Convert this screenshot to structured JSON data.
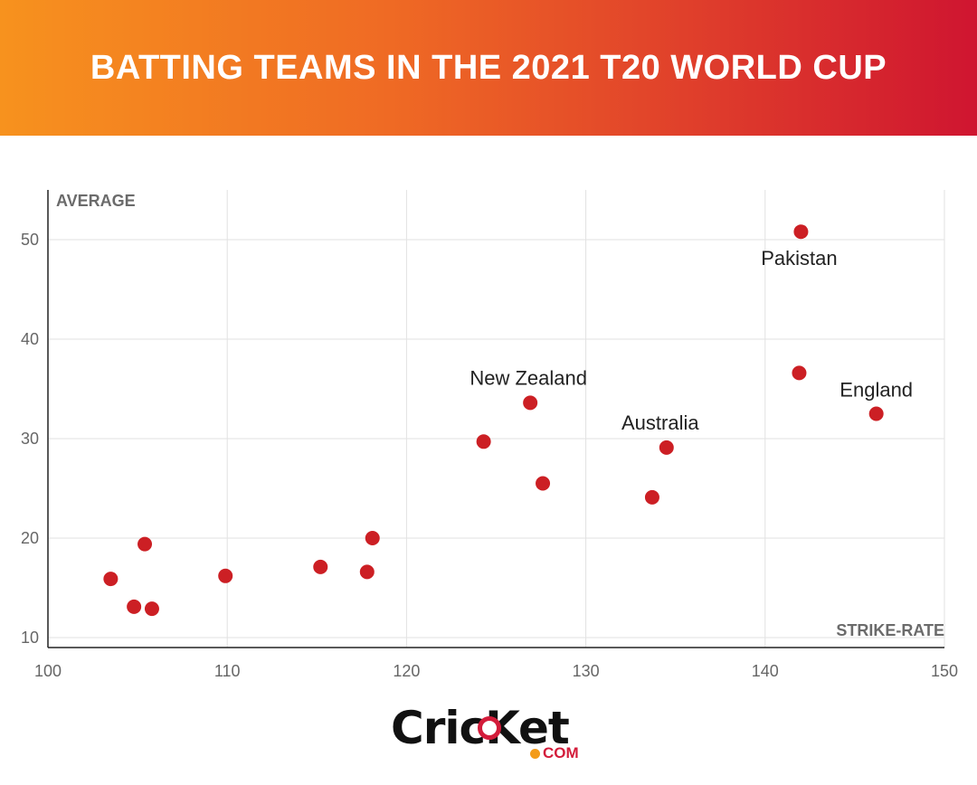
{
  "header": {
    "title": "BATTING TEAMS IN THE 2021 T20 WORLD CUP",
    "gradient_start": "#f7921e",
    "gradient_end": "#cf1530"
  },
  "logo": {
    "word": "CricKet",
    "suffix": "COM",
    "dot_color": "#f39b1a",
    "accent_color": "#d31c3a"
  },
  "chart_data": {
    "type": "scatter",
    "title": "",
    "xlabel": "STRIKE-RATE",
    "ylabel": "AVERAGE",
    "xlim": [
      100,
      150
    ],
    "ylim": [
      9,
      55
    ],
    "x_ticks": [
      100,
      110,
      120,
      130,
      140,
      150
    ],
    "y_ticks": [
      10,
      20,
      30,
      40,
      50
    ],
    "grid": true,
    "point_color": "#cc1f24",
    "points": [
      {
        "x": 103.5,
        "y": 15.9,
        "label": ""
      },
      {
        "x": 105.4,
        "y": 19.4,
        "label": ""
      },
      {
        "x": 104.8,
        "y": 13.1,
        "label": ""
      },
      {
        "x": 105.8,
        "y": 12.9,
        "label": ""
      },
      {
        "x": 109.9,
        "y": 16.2,
        "label": ""
      },
      {
        "x": 115.2,
        "y": 17.1,
        "label": ""
      },
      {
        "x": 117.8,
        "y": 16.6,
        "label": ""
      },
      {
        "x": 118.1,
        "y": 20.0,
        "label": ""
      },
      {
        "x": 124.3,
        "y": 29.7,
        "label": ""
      },
      {
        "x": 126.9,
        "y": 33.6,
        "label": "New Zealand"
      },
      {
        "x": 127.6,
        "y": 25.5,
        "label": ""
      },
      {
        "x": 133.7,
        "y": 24.1,
        "label": ""
      },
      {
        "x": 134.5,
        "y": 29.1,
        "label": "Australia"
      },
      {
        "x": 141.9,
        "y": 36.6,
        "label": ""
      },
      {
        "x": 142.0,
        "y": 50.8,
        "label": "Pakistan"
      },
      {
        "x": 146.2,
        "y": 32.5,
        "label": "England"
      }
    ]
  }
}
